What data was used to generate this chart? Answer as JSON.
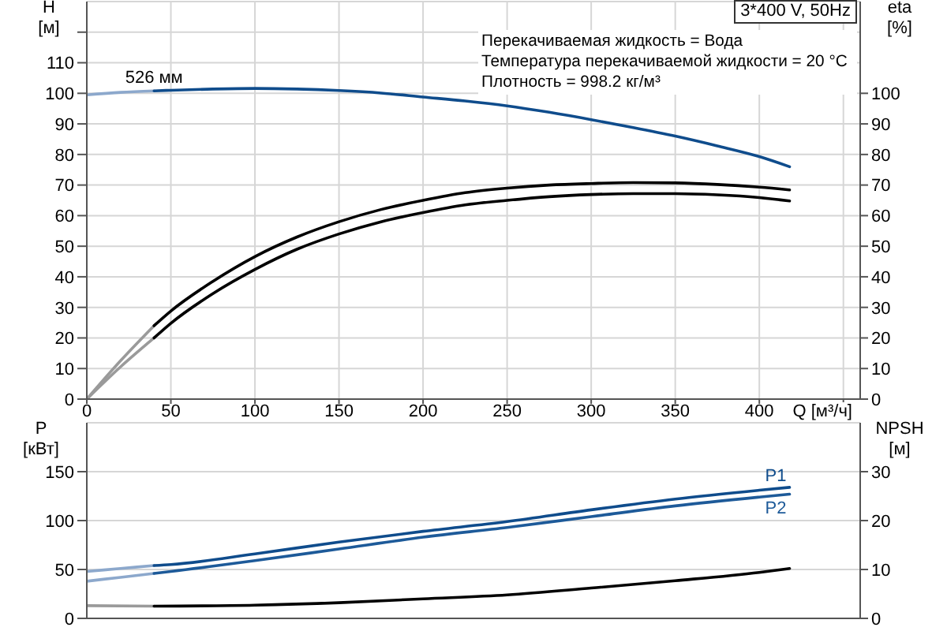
{
  "chart_data": [
    {
      "type": "line",
      "title": "3*400 V, 50Hz",
      "annotations": [
        "Перекачиваемая жидкость = Вода",
        "Температура перекачиваемой жидкости = 20 °C",
        "Плотность = 998.2 кг/м³"
      ],
      "xlabel": "Q [м³/ч]",
      "ylabel": "H [м]",
      "y2label": "eta [%]",
      "xlim": [
        0,
        460
      ],
      "xticks": [
        0,
        50,
        100,
        150,
        200,
        250,
        300,
        350,
        400,
        {
          "value": 450,
          "label": null
        }
      ],
      "ylim": [
        0,
        130
      ],
      "yticks": [
        0,
        10,
        20,
        30,
        40,
        50,
        60,
        70,
        80,
        90,
        100,
        110,
        {
          "value": 120,
          "label": null
        }
      ],
      "y2lim": [
        0,
        130
      ],
      "y2ticks": [
        0,
        10,
        20,
        30,
        40,
        50,
        60,
        70,
        80,
        90,
        100
      ],
      "grid": true,
      "series": [
        {
          "color": "#8ca8cc",
          "x": [
            0,
            20,
            40
          ],
          "values": [
            99.5,
            100.3,
            100.8
          ]
        },
        {
          "name": "526 мм",
          "color": "#0f4c8c",
          "x": [
            40,
            50,
            75,
            100,
            125,
            150,
            175,
            200,
            225,
            250,
            275,
            300,
            325,
            350,
            375,
            400,
            418
          ],
          "values": [
            100.8,
            101,
            101.4,
            101.6,
            101.4,
            100.9,
            100.1,
            98.8,
            97.5,
            95.9,
            93.8,
            91.4,
            88.8,
            86,
            82.8,
            79.3,
            76
          ]
        },
        {
          "color": "#9a9a9a",
          "axis": "y2",
          "x": [
            0,
            20,
            40
          ],
          "values": [
            0,
            12.5,
            24
          ]
        },
        {
          "color": "#000000",
          "axis": "y2",
          "x": [
            40,
            50,
            75,
            100,
            125,
            150,
            175,
            200,
            225,
            250,
            275,
            300,
            325,
            350,
            375,
            400,
            418
          ],
          "values": [
            24,
            28.8,
            38.5,
            46.6,
            53,
            58,
            62,
            65,
            67.5,
            69,
            70,
            70.5,
            70.8,
            70.7,
            70.2,
            69.3,
            68.4
          ]
        },
        {
          "color": "#9a9a9a",
          "axis": "y2",
          "x": [
            0,
            20,
            40
          ],
          "values": [
            0,
            10.5,
            20
          ]
        },
        {
          "color": "#000000",
          "axis": "y2",
          "x": [
            40,
            50,
            75,
            100,
            125,
            150,
            175,
            200,
            225,
            250,
            275,
            300,
            325,
            350,
            375,
            400,
            418
          ],
          "values": [
            20,
            24.8,
            34.5,
            42.4,
            49,
            54,
            58,
            61,
            63.5,
            65,
            66.2,
            66.9,
            67.2,
            67.2,
            66.8,
            65.9,
            64.8
          ]
        }
      ]
    },
    {
      "type": "line",
      "ylabel": "P [кВт]",
      "y2label": "NPSH [м]",
      "xlim": [
        0,
        460
      ],
      "xticks": [
        0,
        50,
        100,
        150,
        200,
        250,
        300,
        350,
        400,
        450
      ],
      "tick_labels": "y",
      "ylim": [
        0,
        200
      ],
      "yticks": [
        0,
        50,
        100,
        150
      ],
      "y2lim": [
        0,
        40
      ],
      "y2ticks": [
        0,
        10,
        20,
        30
      ],
      "grid": true,
      "series": [
        {
          "color": "#8ca8cc",
          "x": [
            0,
            20,
            40
          ],
          "values": [
            48,
            51,
            54
          ]
        },
        {
          "name": "P1",
          "color": "#0f4c8c",
          "x": [
            40,
            50,
            100,
            150,
            200,
            250,
            300,
            350,
            400,
            418
          ],
          "values": [
            54,
            55,
            66,
            78,
            89,
            99,
            111,
            122,
            131,
            134
          ]
        },
        {
          "color": "#8ca8cc",
          "x": [
            0,
            20,
            40
          ],
          "values": [
            38,
            42,
            46
          ]
        },
        {
          "name": "P2",
          "color": "#1d5a99",
          "x": [
            40,
            50,
            100,
            150,
            200,
            250,
            300,
            350,
            400,
            418
          ],
          "values": [
            46,
            48,
            59,
            71,
            83,
            93,
            104,
            115,
            124,
            127
          ]
        },
        {
          "color": "#9a9a9a",
          "axis": "y2",
          "x": [
            0,
            40
          ],
          "values": [
            2.6,
            2.5
          ]
        },
        {
          "color": "#000000",
          "axis": "y2",
          "x": [
            40,
            100,
            150,
            200,
            250,
            300,
            350,
            400,
            418
          ],
          "values": [
            2.5,
            2.7,
            3.2,
            4,
            4.8,
            6.2,
            7.7,
            9.4,
            10.2
          ]
        }
      ]
    }
  ]
}
